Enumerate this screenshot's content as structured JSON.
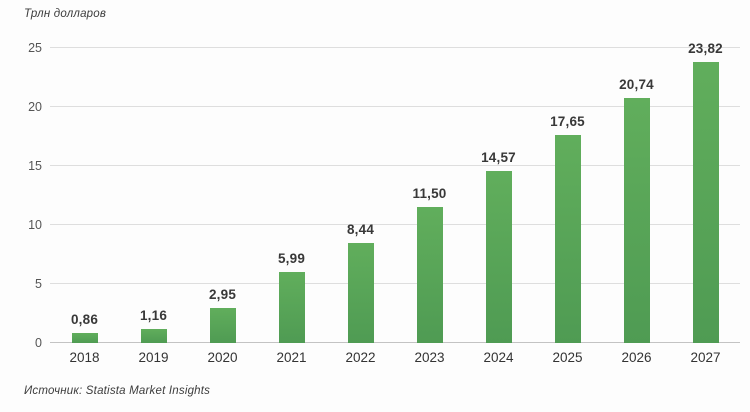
{
  "chart": {
    "title": "Трлн долларов",
    "source": "Источник: Statista Market Insights"
  },
  "chart_data": {
    "type": "bar",
    "title": "Трлн долларов",
    "categories": [
      "2018",
      "2019",
      "2020",
      "2021",
      "2022",
      "2023",
      "2024",
      "2025",
      "2026",
      "2027"
    ],
    "values": [
      0.86,
      1.16,
      2.95,
      5.99,
      8.44,
      11.5,
      14.57,
      17.65,
      20.74,
      23.82
    ],
    "value_labels": [
      "0,86",
      "1,16",
      "2,95",
      "5,99",
      "8,44",
      "11,50",
      "14,57",
      "17,65",
      "20,74",
      "23,82"
    ],
    "xlabel": "",
    "ylabel": "Трлн долларов",
    "ylim": [
      0,
      25
    ],
    "yticks": [
      0,
      5,
      10,
      15,
      20,
      25
    ],
    "grid": true,
    "legend": "none",
    "source": "Источник: Statista Market Insights",
    "colors": {
      "bar_top": "#61ae5c",
      "bar_bottom": "#4f9b53",
      "gridline": "#dedede",
      "axis_line": "#c3c3c3",
      "tick_text": "#555555",
      "label_text": "#383838"
    }
  }
}
